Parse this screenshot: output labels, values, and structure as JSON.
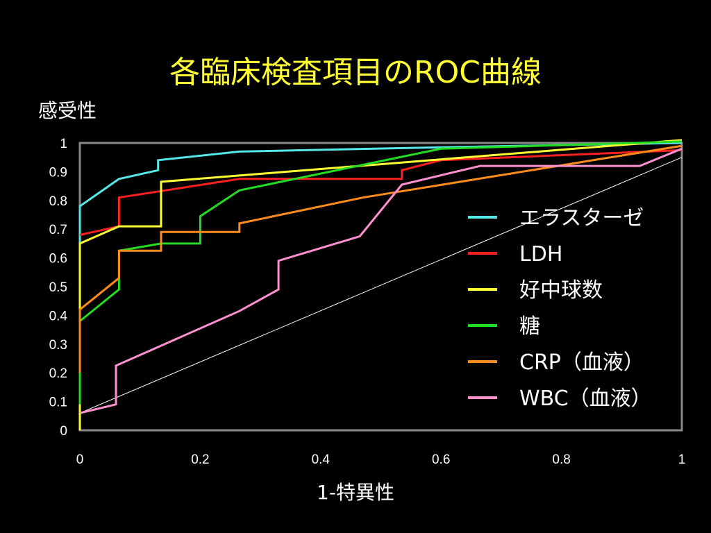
{
  "title": "各臨床検査項目のROC曲線",
  "chart_data": {
    "type": "line",
    "xlabel": "1-特異性",
    "ylabel": "感受性",
    "xlim": [
      0,
      1
    ],
    "ylim": [
      0,
      1
    ],
    "x_ticks": [
      "0",
      "0.2",
      "0.4",
      "0.6",
      "0.8",
      "1"
    ],
    "y_ticks": [
      "0",
      "0.1",
      "0.2",
      "0.3",
      "0.4",
      "0.5",
      "0.6",
      "0.7",
      "0.8",
      "0.9",
      "1"
    ],
    "grid": false,
    "legend_position": "right",
    "reference_line": {
      "color": "#ffffff",
      "points": [
        [
          0,
          0.06
        ],
        [
          1,
          0.95
        ]
      ]
    },
    "series": [
      {
        "name": "エラスターゼ",
        "color": "#55e8e8",
        "points": [
          [
            0,
            0
          ],
          [
            0,
            0.78
          ],
          [
            0.065,
            0.875
          ],
          [
            0.13,
            0.905
          ],
          [
            0.13,
            0.94
          ],
          [
            0.265,
            0.97
          ],
          [
            0.6,
            0.985
          ],
          [
            1,
            1
          ]
        ]
      },
      {
        "name": "LDH",
        "color": "#ff2020",
        "points": [
          [
            0,
            0.68
          ],
          [
            0.065,
            0.71
          ],
          [
            0.065,
            0.81
          ],
          [
            0.265,
            0.875
          ],
          [
            0.535,
            0.875
          ],
          [
            0.535,
            0.905
          ],
          [
            0.6,
            0.94
          ],
          [
            1,
            0.975
          ]
        ]
      },
      {
        "name": "好中球数",
        "color": "#ffff33",
        "points": [
          [
            0,
            0
          ],
          [
            0,
            0.65
          ],
          [
            0.065,
            0.71
          ],
          [
            0.135,
            0.71
          ],
          [
            0.135,
            0.865
          ],
          [
            1,
            1.01
          ]
        ]
      },
      {
        "name": "糖",
        "color": "#22dd22",
        "points": [
          [
            0,
            0.09
          ],
          [
            0,
            0.38
          ],
          [
            0.065,
            0.49
          ],
          [
            0.065,
            0.625
          ],
          [
            0.135,
            0.65
          ],
          [
            0.2,
            0.65
          ],
          [
            0.2,
            0.745
          ],
          [
            0.265,
            0.835
          ],
          [
            0.6,
            0.98
          ],
          [
            1,
            1.005
          ]
        ]
      },
      {
        "name": "CRP（血液）",
        "color": "#ff8c1a",
        "points": [
          [
            0,
            0.2
          ],
          [
            0,
            0.42
          ],
          [
            0.065,
            0.53
          ],
          [
            0.065,
            0.625
          ],
          [
            0.135,
            0.625
          ],
          [
            0.135,
            0.69
          ],
          [
            0.265,
            0.69
          ],
          [
            0.265,
            0.72
          ],
          [
            0.47,
            0.81
          ],
          [
            1,
            0.99
          ]
        ]
      },
      {
        "name": "WBC（血液）",
        "color": "#ff8fcf",
        "points": [
          [
            0,
            0.06
          ],
          [
            0.06,
            0.09
          ],
          [
            0.06,
            0.225
          ],
          [
            0.265,
            0.415
          ],
          [
            0.33,
            0.49
          ],
          [
            0.33,
            0.59
          ],
          [
            0.465,
            0.675
          ],
          [
            0.535,
            0.855
          ],
          [
            0.665,
            0.92
          ],
          [
            0.93,
            0.92
          ],
          [
            1,
            0.98
          ]
        ]
      }
    ]
  }
}
